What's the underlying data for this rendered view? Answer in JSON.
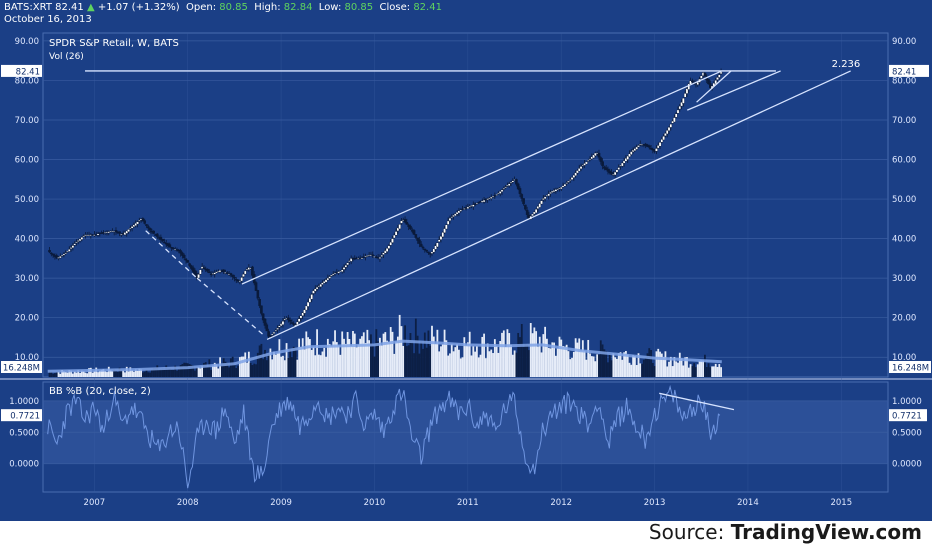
{
  "header": {
    "symbol": "BATS:XRT",
    "last": "82.41",
    "change_arrow": "▲",
    "change": "+1.07 (+1.32%)",
    "open_label": "Open:",
    "open": "80.85",
    "high_label": "High:",
    "high": "82.84",
    "low_label": "Low:",
    "low": "80.85",
    "close_label": "Close:",
    "close": "82.41",
    "date": "October 16, 2013"
  },
  "main_pane": {
    "title": "SPDR S&P Retail, W, BATS",
    "vol_label": "Vol (26)",
    "price_badge": "82.41",
    "vol_badge": "16.248M",
    "fib_label": "2.236"
  },
  "indicator_pane": {
    "title": "BB %B (20, close, 2)",
    "badge": "0.7721"
  },
  "source": {
    "prefix": "Source: ",
    "brand": "TradingView.com"
  },
  "colors": {
    "background": "#1b3f86",
    "grid": "#3a5da0",
    "line": "#d6e3ff",
    "volume_up": "#e6ecf8",
    "volume_down": "#0c1f45",
    "vol_ma": "#7fa3e6",
    "band": "#3a5fa8",
    "positive": "#5fd35f"
  },
  "chart_data": [
    {
      "type": "candlestick",
      "title": "SPDR S&P Retail, W, BATS",
      "x_ticks": [
        "2007",
        "2008",
        "2009",
        "2010",
        "2011",
        "2012",
        "2013",
        "2014",
        "2015"
      ],
      "y_ticks": [
        "10.00",
        "20.00",
        "30.00",
        "40.00",
        "50.00",
        "60.00",
        "70.00",
        "80.00",
        "90.00"
      ],
      "ylim": [
        5,
        92
      ],
      "xlim": [
        2006.45,
        2015.5
      ],
      "series": [
        {
          "kind": "price_path",
          "points": [
            [
              2006.5,
              37
            ],
            [
              2006.6,
              35
            ],
            [
              2006.7,
              36.5
            ],
            [
              2006.8,
              39
            ],
            [
              2006.9,
              41
            ],
            [
              2007.0,
              41
            ],
            [
              2007.1,
              41.5
            ],
            [
              2007.2,
              42
            ],
            [
              2007.3,
              41
            ],
            [
              2007.4,
              43
            ],
            [
              2007.5,
              45
            ],
            [
              2007.6,
              42
            ],
            [
              2007.7,
              40
            ],
            [
              2007.8,
              38
            ],
            [
              2007.9,
              37
            ],
            [
              2008.0,
              34
            ],
            [
              2008.1,
              30
            ],
            [
              2008.15,
              33
            ],
            [
              2008.25,
              31
            ],
            [
              2008.35,
              32
            ],
            [
              2008.45,
              31
            ],
            [
              2008.55,
              29
            ],
            [
              2008.62,
              32
            ],
            [
              2008.67,
              33
            ],
            [
              2008.72,
              28
            ],
            [
              2008.8,
              20
            ],
            [
              2008.87,
              15
            ],
            [
              2008.95,
              17
            ],
            [
              2009.05,
              20
            ],
            [
              2009.15,
              18
            ],
            [
              2009.25,
              22
            ],
            [
              2009.35,
              27
            ],
            [
              2009.45,
              29
            ],
            [
              2009.55,
              31
            ],
            [
              2009.65,
              32
            ],
            [
              2009.75,
              35
            ],
            [
              2009.85,
              35
            ],
            [
              2009.95,
              36
            ],
            [
              2010.05,
              35
            ],
            [
              2010.15,
              38
            ],
            [
              2010.3,
              45
            ],
            [
              2010.4,
              42
            ],
            [
              2010.5,
              38
            ],
            [
              2010.6,
              36
            ],
            [
              2010.7,
              40
            ],
            [
              2010.8,
              45
            ],
            [
              2010.9,
              47
            ],
            [
              2011.0,
              48
            ],
            [
              2011.1,
              49
            ],
            [
              2011.2,
              50
            ],
            [
              2011.3,
              51
            ],
            [
              2011.4,
              53
            ],
            [
              2011.5,
              55
            ],
            [
              2011.58,
              50
            ],
            [
              2011.65,
              45
            ],
            [
              2011.72,
              47
            ],
            [
              2011.8,
              50
            ],
            [
              2011.9,
              52
            ],
            [
              2012.0,
              53
            ],
            [
              2012.1,
              55
            ],
            [
              2012.2,
              58
            ],
            [
              2012.3,
              60
            ],
            [
              2012.38,
              62
            ],
            [
              2012.45,
              58
            ],
            [
              2012.55,
              56
            ],
            [
              2012.65,
              59
            ],
            [
              2012.75,
              62
            ],
            [
              2012.85,
              64
            ],
            [
              2012.95,
              63
            ],
            [
              2013.0,
              62
            ],
            [
              2013.1,
              66
            ],
            [
              2013.2,
              70
            ],
            [
              2013.3,
              75
            ],
            [
              2013.38,
              80
            ],
            [
              2013.45,
              79
            ],
            [
              2013.52,
              82
            ],
            [
              2013.6,
              78
            ],
            [
              2013.68,
              81
            ],
            [
              2013.72,
              82.4
            ]
          ]
        },
        {
          "kind": "volume",
          "ylim_millions": [
            0,
            90
          ],
          "points": [
            [
              2006.5,
              5
            ],
            [
              2006.8,
              6
            ],
            [
              2007.0,
              7
            ],
            [
              2007.3,
              8
            ],
            [
              2007.5,
              7
            ],
            [
              2007.7,
              9
            ],
            [
              2007.9,
              10
            ],
            [
              2008.1,
              12
            ],
            [
              2008.3,
              14
            ],
            [
              2008.5,
              16
            ],
            [
              2008.7,
              22
            ],
            [
              2008.85,
              30
            ],
            [
              2009.0,
              32
            ],
            [
              2009.2,
              33
            ],
            [
              2009.4,
              38
            ],
            [
              2009.6,
              36
            ],
            [
              2009.8,
              34
            ],
            [
              2010.0,
              35
            ],
            [
              2010.2,
              40
            ],
            [
              2010.3,
              48
            ],
            [
              2010.5,
              42
            ],
            [
              2010.7,
              38
            ],
            [
              2010.9,
              34
            ],
            [
              2011.1,
              36
            ],
            [
              2011.3,
              33
            ],
            [
              2011.5,
              38
            ],
            [
              2011.7,
              42
            ],
            [
              2011.9,
              35
            ],
            [
              2012.1,
              30
            ],
            [
              2012.3,
              29
            ],
            [
              2012.5,
              26
            ],
            [
              2012.7,
              24
            ],
            [
              2012.9,
              22
            ],
            [
              2013.1,
              20
            ],
            [
              2013.3,
              18
            ],
            [
              2013.5,
              17
            ],
            [
              2013.7,
              16.2
            ]
          ]
        },
        {
          "kind": "volume_ma",
          "name": "Vol (26)",
          "points": [
            [
              2006.5,
              6
            ],
            [
              2007.0,
              7
            ],
            [
              2007.5,
              8
            ],
            [
              2008.0,
              10
            ],
            [
              2008.5,
              14
            ],
            [
              2008.9,
              25
            ],
            [
              2009.3,
              32
            ],
            [
              2009.7,
              33
            ],
            [
              2010.0,
              34
            ],
            [
              2010.3,
              38
            ],
            [
              2010.7,
              36
            ],
            [
              2011.0,
              34
            ],
            [
              2011.4,
              33
            ],
            [
              2011.8,
              34
            ],
            [
              2012.2,
              28
            ],
            [
              2012.6,
              24
            ],
            [
              2013.0,
              20
            ],
            [
              2013.4,
              18
            ],
            [
              2013.72,
              16.2
            ]
          ]
        },
        {
          "kind": "trendlines",
          "lines": [
            {
              "name": "horizontal",
              "x1": 2006.9,
              "y1": 82.41,
              "x2": 2014.3,
              "y2": 82.41
            },
            {
              "name": "channel-upper",
              "x1": 2008.58,
              "y1": 28.5,
              "x2": 2013.72,
              "y2": 82.41
            },
            {
              "name": "channel-lower",
              "x1": 2008.85,
              "y1": 14.5,
              "x2": 2015.1,
              "y2": 82.41
            },
            {
              "name": "inner-steep",
              "x1": 2013.35,
              "y1": 72.5,
              "x2": 2014.35,
              "y2": 82.41
            },
            {
              "name": "inner-steep-2",
              "x1": 2013.45,
              "y1": 74.5,
              "x2": 2013.82,
              "y2": 82.41
            },
            {
              "name": "dashed-a",
              "x1": 2007.55,
              "y1": 42,
              "x2": 2008.1,
              "y2": 30,
              "dashed": true
            },
            {
              "name": "dashed-b",
              "x1": 2008.1,
              "y1": 30,
              "x2": 2008.82,
              "y2": 15.5,
              "dashed": true
            }
          ]
        }
      ]
    },
    {
      "type": "line",
      "title": "BB %B (20, close, 2)",
      "y_ticks": [
        "0.0000",
        "0.5000",
        "1.0000"
      ],
      "ylim": [
        -0.45,
        1.3
      ],
      "band": [
        0,
        1
      ],
      "last": 0.7721,
      "series": [
        {
          "name": "BB %B",
          "x": [
            2006.5,
            2006.6,
            2006.7,
            2006.8,
            2006.9,
            2007.0,
            2007.1,
            2007.2,
            2007.3,
            2007.4,
            2007.5,
            2007.6,
            2007.7,
            2007.8,
            2007.9,
            2008.0,
            2008.1,
            2008.2,
            2008.3,
            2008.4,
            2008.5,
            2008.6,
            2008.7,
            2008.8,
            2008.9,
            2009.0,
            2009.1,
            2009.2,
            2009.3,
            2009.4,
            2009.5,
            2009.6,
            2009.7,
            2009.8,
            2009.9,
            2010.0,
            2010.1,
            2010.2,
            2010.3,
            2010.4,
            2010.5,
            2010.6,
            2010.7,
            2010.8,
            2010.9,
            2011.0,
            2011.1,
            2011.2,
            2011.3,
            2011.4,
            2011.5,
            2011.6,
            2011.7,
            2011.8,
            2011.9,
            2012.0,
            2012.1,
            2012.2,
            2012.3,
            2012.4,
            2012.5,
            2012.6,
            2012.7,
            2012.8,
            2012.9,
            2013.0,
            2013.1,
            2013.2,
            2013.3,
            2013.4,
            2013.5,
            2013.6,
            2013.7
          ],
          "values": [
            0.6,
            0.3,
            0.8,
            1.0,
            0.7,
            0.9,
            0.5,
            1.1,
            0.6,
            0.9,
            0.7,
            0.4,
            0.2,
            0.5,
            0.6,
            -0.35,
            0.4,
            0.7,
            0.5,
            0.9,
            0.3,
            0.8,
            -0.1,
            -0.2,
            0.6,
            0.9,
            1.0,
            0.6,
            0.8,
            1.05,
            0.7,
            0.9,
            0.8,
            1.0,
            0.6,
            0.8,
            0.5,
            0.9,
            1.15,
            0.4,
            0.1,
            0.6,
            0.9,
            1.0,
            0.8,
            0.9,
            0.6,
            0.8,
            0.5,
            0.9,
            1.0,
            0.2,
            -0.1,
            0.5,
            0.8,
            0.9,
            1.0,
            0.8,
            0.6,
            1.05,
            0.3,
            0.7,
            0.9,
            0.6,
            0.4,
            0.8,
            1.0,
            1.1,
            0.7,
            0.9,
            1.0,
            0.5,
            0.77
          ]
        }
      ],
      "trendline": {
        "x1": 2013.05,
        "y1": 1.12,
        "x2": 2013.85,
        "y2": 0.86
      }
    }
  ]
}
